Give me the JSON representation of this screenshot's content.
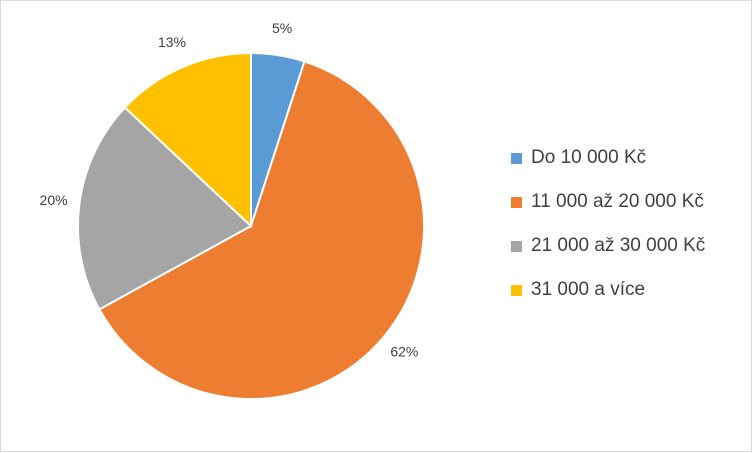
{
  "chart_data": {
    "type": "pie",
    "title": "",
    "categories": [
      "Do 10 000 Kč",
      "11 000 až 20 000 Kč",
      "21 000 až 30 000 Kč",
      "31 000 a více"
    ],
    "values": [
      5,
      62,
      20,
      13
    ],
    "value_labels": [
      "5%",
      "62%",
      "20%",
      "13%"
    ],
    "colors": [
      "#5b9bd5",
      "#ed7d31",
      "#a5a5a5",
      "#ffc000"
    ],
    "start_angle_deg": 0,
    "direction": "clockwise",
    "legend": "right"
  }
}
